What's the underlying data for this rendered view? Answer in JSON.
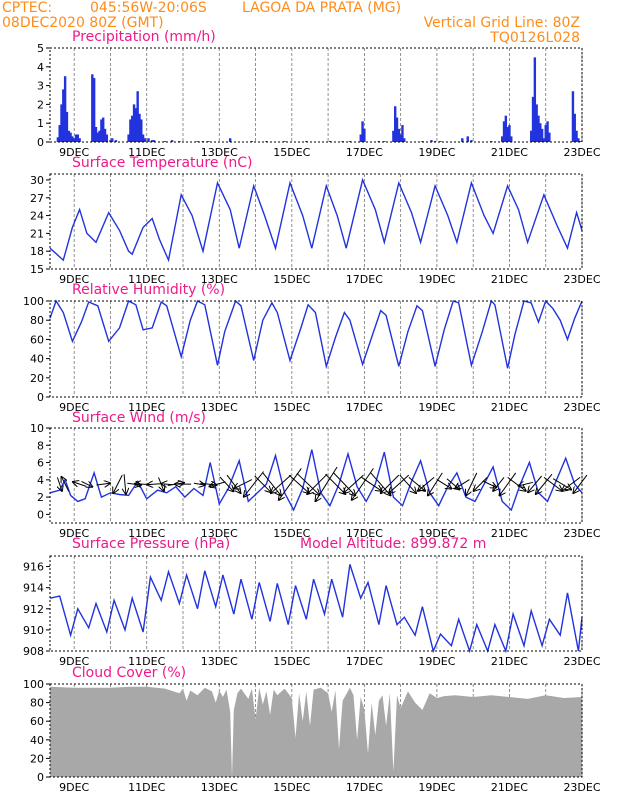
{
  "header": {
    "source": "CPTEC:",
    "coords": "045:56W-20:06S",
    "location": "LAGOA DA PRATA (MG)",
    "datetime": "08DEC2020 80Z (GMT)",
    "vgrid": "Vertical Grid Line: 80Z",
    "model": "TQ0126L028"
  },
  "colors": {
    "header": "#ff8c1a",
    "title": "#ee1a8c",
    "line": "#2233dd",
    "cloud": "#a8a8a8",
    "arrow": "#000000"
  },
  "chart_data": [
    {
      "type": "bar",
      "title": "Precipitation (mm/h)",
      "ylim": [
        0,
        5
      ],
      "yticks": [
        0,
        1,
        2,
        3,
        4,
        5
      ],
      "xticks": [
        "9DEC",
        "11DEC",
        "13DEC",
        "15DEC",
        "17DEC",
        "19DEC",
        "21DEC",
        "23DEC"
      ],
      "x_start_day": 8.333,
      "x_end_day": 23,
      "x": [
        8.55,
        8.6,
        8.65,
        8.7,
        8.75,
        8.8,
        8.85,
        8.9,
        8.95,
        9.0,
        9.05,
        9.1,
        9.15,
        9.5,
        9.55,
        9.6,
        9.65,
        9.7,
        9.75,
        9.8,
        9.85,
        9.9,
        10.0,
        10.05,
        10.15,
        10.5,
        10.55,
        10.6,
        10.65,
        10.7,
        10.75,
        10.8,
        10.85,
        10.9,
        10.95,
        11.05,
        11.15,
        11.2,
        11.5,
        11.7,
        11.9,
        12.4,
        12.55,
        12.7,
        13.3,
        13.9,
        14.3,
        14.8,
        15.4,
        16.05,
        16.4,
        16.6,
        16.9,
        16.95,
        17.0,
        17.4,
        17.55,
        17.8,
        17.85,
        17.9,
        17.95,
        18.0,
        18.05,
        18.1,
        18.6,
        18.85,
        18.95,
        19.1,
        19.7,
        19.85,
        19.95,
        20.5,
        20.8,
        20.85,
        20.9,
        20.95,
        21.0,
        21.05,
        21.6,
        21.65,
        21.7,
        21.75,
        21.8,
        21.85,
        21.9,
        21.95,
        22.0,
        22.05,
        22.1,
        22.75,
        22.8,
        22.85,
        22.9,
        22.95
      ],
      "values": [
        0.25,
        0.9,
        2.0,
        2.8,
        3.5,
        1.6,
        0.6,
        0.5,
        0.3,
        0.2,
        0.4,
        0.4,
        0.2,
        3.6,
        3.4,
        0.8,
        0.5,
        0.6,
        1.2,
        1.3,
        0.7,
        0.4,
        0.1,
        0.2,
        0.1,
        0.4,
        1.2,
        1.4,
        2.0,
        1.8,
        2.7,
        1.5,
        1.2,
        0.4,
        0.2,
        0.2,
        0.1,
        0.1,
        0.05,
        0.1,
        0.05,
        0.05,
        0.05,
        0.05,
        0.2,
        0.05,
        0.05,
        0.05,
        0.05,
        0.05,
        0.05,
        0.05,
        0.4,
        1.1,
        0.7,
        0.05,
        0.05,
        0.6,
        1.9,
        1.3,
        0.7,
        0.4,
        0.9,
        0.2,
        0.05,
        0.1,
        0.05,
        0.05,
        0.2,
        0.3,
        0.1,
        0.05,
        0.3,
        1.1,
        1.4,
        0.8,
        0.9,
        0.3,
        0.6,
        2.4,
        4.5,
        2.0,
        1.4,
        1.0,
        0.7,
        0.2,
        0.9,
        1.1,
        0.5,
        2.7,
        1.5,
        0.6,
        0.2,
        0.05
      ]
    },
    {
      "type": "line",
      "title": "Surface Temperature (nC)",
      "ylim": [
        15,
        31
      ],
      "yticks": [
        15,
        18,
        21,
        24,
        27,
        30
      ],
      "xticks": [
        "9DEC",
        "11DEC",
        "13DEC",
        "15DEC",
        "17DEC",
        "19DEC",
        "21DEC",
        "23DEC"
      ],
      "x_start_day": 8.333,
      "x_end_day": 23,
      "x": [
        8.333,
        8.7,
        8.95,
        9.15,
        9.35,
        9.6,
        9.95,
        10.25,
        10.5,
        10.6,
        10.9,
        11.15,
        11.35,
        11.6,
        11.95,
        12.25,
        12.55,
        12.95,
        13.3,
        13.55,
        13.95,
        14.25,
        14.55,
        14.95,
        15.3,
        15.55,
        15.95,
        16.25,
        16.5,
        16.95,
        17.3,
        17.55,
        17.95,
        18.3,
        18.55,
        18.95,
        19.3,
        19.55,
        19.95,
        20.3,
        20.55,
        20.95,
        21.25,
        21.5,
        21.95,
        22.3,
        22.6,
        22.85,
        23.0
      ],
      "values": [
        18.5,
        16.5,
        22.0,
        25.0,
        21.0,
        19.5,
        24.5,
        21.5,
        18.0,
        17.5,
        22.0,
        23.5,
        20.0,
        16.5,
        27.5,
        24.0,
        18.0,
        29.5,
        25.0,
        18.5,
        29.0,
        24.0,
        18.5,
        29.5,
        24.0,
        18.5,
        29.0,
        24.0,
        18.5,
        30.0,
        25.0,
        19.5,
        29.5,
        24.5,
        19.5,
        29.0,
        24.0,
        19.5,
        29.5,
        24.0,
        21.0,
        29.0,
        25.0,
        19.5,
        27.5,
        22.5,
        18.5,
        24.5,
        21.5
      ]
    },
    {
      "type": "line",
      "title": "Relative Humidity (%)",
      "ylim": [
        0,
        100
      ],
      "yticks": [
        0,
        20,
        40,
        60,
        80,
        100
      ],
      "xticks": [
        "9DEC",
        "11DEC",
        "13DEC",
        "15DEC",
        "17DEC",
        "19DEC",
        "21DEC",
        "23DEC"
      ],
      "x_start_day": 8.333,
      "x_end_day": 23,
      "x": [
        8.333,
        8.5,
        8.7,
        8.95,
        9.2,
        9.4,
        9.65,
        9.95,
        10.25,
        10.5,
        10.7,
        10.9,
        11.15,
        11.4,
        11.55,
        11.95,
        12.2,
        12.4,
        12.6,
        12.95,
        13.15,
        13.45,
        13.6,
        13.95,
        14.2,
        14.45,
        14.6,
        14.95,
        15.25,
        15.45,
        15.65,
        15.95,
        16.2,
        16.45,
        16.6,
        16.95,
        17.2,
        17.45,
        17.6,
        17.95,
        18.2,
        18.45,
        18.6,
        18.95,
        19.2,
        19.45,
        19.6,
        19.95,
        20.25,
        20.5,
        20.6,
        20.95,
        21.15,
        21.4,
        21.6,
        21.8,
        22.0,
        22.2,
        22.4,
        22.6,
        22.8,
        23.0
      ],
      "values": [
        82,
        100,
        88,
        58,
        78,
        99,
        95,
        58,
        72,
        100,
        96,
        70,
        72,
        99,
        95,
        42,
        80,
        100,
        96,
        33,
        68,
        100,
        95,
        38,
        80,
        98,
        88,
        38,
        72,
        96,
        88,
        32,
        62,
        88,
        80,
        34,
        62,
        90,
        85,
        32,
        68,
        95,
        90,
        32,
        70,
        100,
        98,
        33,
        68,
        100,
        96,
        30,
        65,
        100,
        98,
        78,
        100,
        92,
        80,
        60,
        82,
        100
      ]
    },
    {
      "type": "line",
      "title": "Surface Wind (m/s)",
      "ylim": [
        -1,
        10
      ],
      "yticks": [
        0,
        2,
        4,
        6,
        8,
        10
      ],
      "xticks": [
        "9DEC",
        "11DEC",
        "13DEC",
        "15DEC",
        "17DEC",
        "19DEC",
        "21DEC",
        "23DEC"
      ],
      "x_start_day": 8.333,
      "x_end_day": 23,
      "x": [
        8.333,
        8.6,
        8.75,
        8.9,
        9.1,
        9.3,
        9.55,
        9.75,
        10.0,
        10.25,
        10.5,
        10.75,
        11.0,
        11.3,
        11.55,
        11.8,
        12.05,
        12.3,
        12.55,
        12.75,
        13.0,
        13.25,
        13.55,
        13.8,
        14.05,
        14.3,
        14.55,
        14.8,
        15.05,
        15.3,
        15.55,
        15.8,
        16.05,
        16.3,
        16.55,
        16.8,
        17.05,
        17.3,
        17.55,
        17.8,
        18.05,
        18.3,
        18.55,
        18.8,
        19.05,
        19.3,
        19.55,
        19.8,
        20.05,
        20.3,
        20.55,
        20.8,
        21.05,
        21.3,
        21.55,
        21.8,
        22.05,
        22.3,
        22.55,
        22.8,
        23.0
      ],
      "values": [
        2.5,
        2.8,
        4.0,
        2.2,
        1.5,
        1.8,
        4.8,
        2.0,
        2.5,
        2.3,
        2.2,
        3.8,
        1.8,
        2.8,
        2.5,
        3.2,
        2.0,
        3.0,
        2.2,
        6.0,
        1.2,
        3.0,
        6.2,
        1.5,
        2.5,
        3.5,
        6.8,
        2.5,
        0.5,
        3.0,
        7.5,
        2.5,
        1.0,
        3.5,
        7.0,
        3.2,
        1.5,
        3.5,
        7.2,
        2.0,
        1.0,
        3.8,
        6.2,
        2.5,
        1.0,
        3.2,
        4.8,
        2.0,
        1.5,
        3.5,
        5.5,
        1.5,
        0.5,
        3.5,
        6.0,
        2.5,
        1.5,
        4.0,
        6.5,
        3.5,
        2.5
      ]
    },
    {
      "type": "line",
      "title": "Surface Pressure (hPa)",
      "annotation": "Model Altitude: 899.872 m",
      "ylim": [
        908,
        917
      ],
      "yticks": [
        908,
        910,
        912,
        914,
        916
      ],
      "xticks": [
        "9DEC",
        "11DEC",
        "13DEC",
        "15DEC",
        "17DEC",
        "19DEC",
        "21DEC",
        "23DEC"
      ],
      "x_start_day": 8.333,
      "x_end_day": 23,
      "x": [
        8.333,
        8.6,
        8.9,
        9.1,
        9.4,
        9.6,
        9.9,
        10.1,
        10.4,
        10.6,
        10.9,
        11.1,
        11.4,
        11.6,
        11.9,
        12.1,
        12.4,
        12.6,
        12.9,
        13.1,
        13.4,
        13.6,
        13.9,
        14.1,
        14.4,
        14.6,
        14.9,
        15.1,
        15.4,
        15.6,
        15.9,
        16.1,
        16.4,
        16.6,
        16.9,
        17.1,
        17.4,
        17.6,
        17.9,
        18.1,
        18.4,
        18.6,
        18.9,
        19.1,
        19.4,
        19.6,
        19.9,
        20.1,
        20.4,
        20.6,
        20.9,
        21.1,
        21.4,
        21.6,
        21.9,
        22.1,
        22.4,
        22.6,
        22.9,
        23.0
      ],
      "values": [
        913,
        913.2,
        909.5,
        912,
        910.2,
        912.5,
        909.8,
        912.8,
        910,
        913,
        909.8,
        915,
        912.8,
        915.5,
        912.5,
        915.2,
        912,
        915.6,
        912.2,
        915.2,
        911.5,
        914.8,
        911,
        914.5,
        910.8,
        914.4,
        910.5,
        914.2,
        911,
        914.8,
        911.5,
        914.8,
        911.2,
        916.2,
        913,
        914.5,
        910.5,
        914.2,
        910.5,
        911.2,
        909.5,
        912.2,
        908,
        909.6,
        908.5,
        911,
        907.5,
        910.5,
        908,
        910.5,
        907.8,
        911.5,
        908.5,
        911.8,
        908.5,
        911,
        909.5,
        913.5,
        908,
        911.2
      ]
    },
    {
      "type": "area",
      "title": "Cloud Cover (%)",
      "ylim": [
        0,
        100
      ],
      "yticks": [
        0,
        20,
        40,
        60,
        80,
        100
      ],
      "xticks": [
        "9DEC",
        "11DEC",
        "13DEC",
        "15DEC",
        "17DEC",
        "19DEC",
        "21DEC",
        "23DEC"
      ],
      "x_start_day": 8.333,
      "x_end_day": 23,
      "x": [
        8.333,
        9.0,
        9.5,
        10.0,
        10.5,
        11.0,
        11.5,
        11.9,
        12.0,
        12.1,
        12.2,
        12.4,
        12.6,
        12.8,
        12.9,
        13.0,
        13.1,
        13.2,
        13.3,
        13.35,
        13.4,
        13.5,
        13.6,
        13.8,
        13.9,
        14.0,
        14.1,
        14.2,
        14.3,
        14.4,
        14.5,
        14.6,
        14.8,
        15.0,
        15.1,
        15.2,
        15.3,
        15.4,
        15.5,
        15.6,
        15.8,
        16.0,
        16.1,
        16.2,
        16.3,
        16.4,
        16.6,
        16.7,
        16.8,
        16.9,
        17.0,
        17.1,
        17.2,
        17.3,
        17.4,
        17.5,
        17.6,
        17.7,
        17.8,
        17.9,
        18.0,
        18.2,
        18.4,
        18.6,
        18.8,
        19.0,
        19.2,
        19.5,
        20.0,
        20.5,
        21.0,
        21.5,
        22.0,
        22.5,
        23.0
      ],
      "values": [
        97,
        96,
        96,
        96,
        97,
        97,
        95,
        90,
        95,
        82,
        93,
        88,
        96,
        92,
        80,
        93,
        86,
        94,
        70,
        0,
        72,
        90,
        95,
        84,
        95,
        62,
        96,
        78,
        92,
        67,
        94,
        88,
        95,
        85,
        42,
        90,
        60,
        92,
        55,
        94,
        96,
        90,
        70,
        93,
        30,
        82,
        96,
        88,
        40,
        86,
        72,
        25,
        80,
        45,
        82,
        88,
        55,
        90,
        6,
        88,
        74,
        92,
        80,
        72,
        90,
        85,
        87,
        88,
        86,
        88,
        86,
        84,
        88,
        85,
        86
      ]
    }
  ],
  "wind_arrows": {
    "note": "",
    "x": [
      8.6,
      8.75,
      9.15,
      9.35,
      9.8,
      10.2,
      10.4,
      10.65,
      10.9,
      11.2,
      11.4,
      11.55,
      11.8,
      12.0,
      12.45,
      12.7,
      12.95,
      13.2,
      13.4,
      13.65,
      13.95,
      14.2,
      14.45,
      14.7,
      14.95,
      15.2,
      15.45,
      15.7,
      15.95,
      16.2,
      16.45,
      16.7,
      16.95,
      17.2,
      17.45,
      17.7,
      17.95,
      18.2,
      18.45,
      18.7,
      18.95,
      19.2,
      19.45,
      19.7,
      19.95,
      20.2,
      20.45,
      20.7,
      20.95,
      21.2,
      21.45,
      21.7,
      21.95,
      22.2,
      22.45,
      22.7,
      22.95
    ],
    "u": [
      0.5,
      -0.8,
      -1.5,
      1.2,
      1.5,
      -1,
      0.2,
      1.5,
      -1.8,
      -1.5,
      0.6,
      -1.2,
      1.8,
      -1.8,
      1.2,
      1.8,
      -1.8,
      1.5,
      1.5,
      -2,
      -2.2,
      1.8,
      2,
      -2.2,
      -2.5,
      2.2,
      2.5,
      -2.2,
      -2.4,
      2.2,
      2.4,
      -2.2,
      -2.4,
      2.2,
      2.2,
      -2,
      -2.2,
      1.8,
      1.8,
      -1.8,
      -1.6,
      1.6,
      1.4,
      -1.6,
      -1.2,
      -1.5,
      1.5,
      -1.2,
      -1.8,
      2,
      -1.6,
      -1.5,
      -1.8,
      2,
      2,
      -2,
      -1.5
    ],
    "v": [
      -1.5,
      1.6,
      0.5,
      -0.6,
      0.2,
      -2,
      -2.2,
      -0.2,
      0.1,
      -0.1,
      -1.5,
      0.1,
      0.3,
      0,
      -0.2,
      -0.2,
      -0.5,
      -1.6,
      -2,
      -1,
      -2.8,
      -1.8,
      -2.5,
      -2,
      -3.5,
      -2,
      -2.4,
      -2.2,
      -3.8,
      -2.2,
      -2.5,
      -2,
      -3.5,
      -1.5,
      -2.5,
      -2,
      -2,
      -2,
      -1.5,
      -1.5,
      -2.5,
      -1,
      -1.2,
      -1,
      -2.5,
      -1.5,
      -0.7,
      -1.5,
      -2.5,
      -1.5,
      -0.4,
      -1.8,
      -2.2,
      -1.5,
      -1.2,
      -1.5,
      -2
    ]
  }
}
